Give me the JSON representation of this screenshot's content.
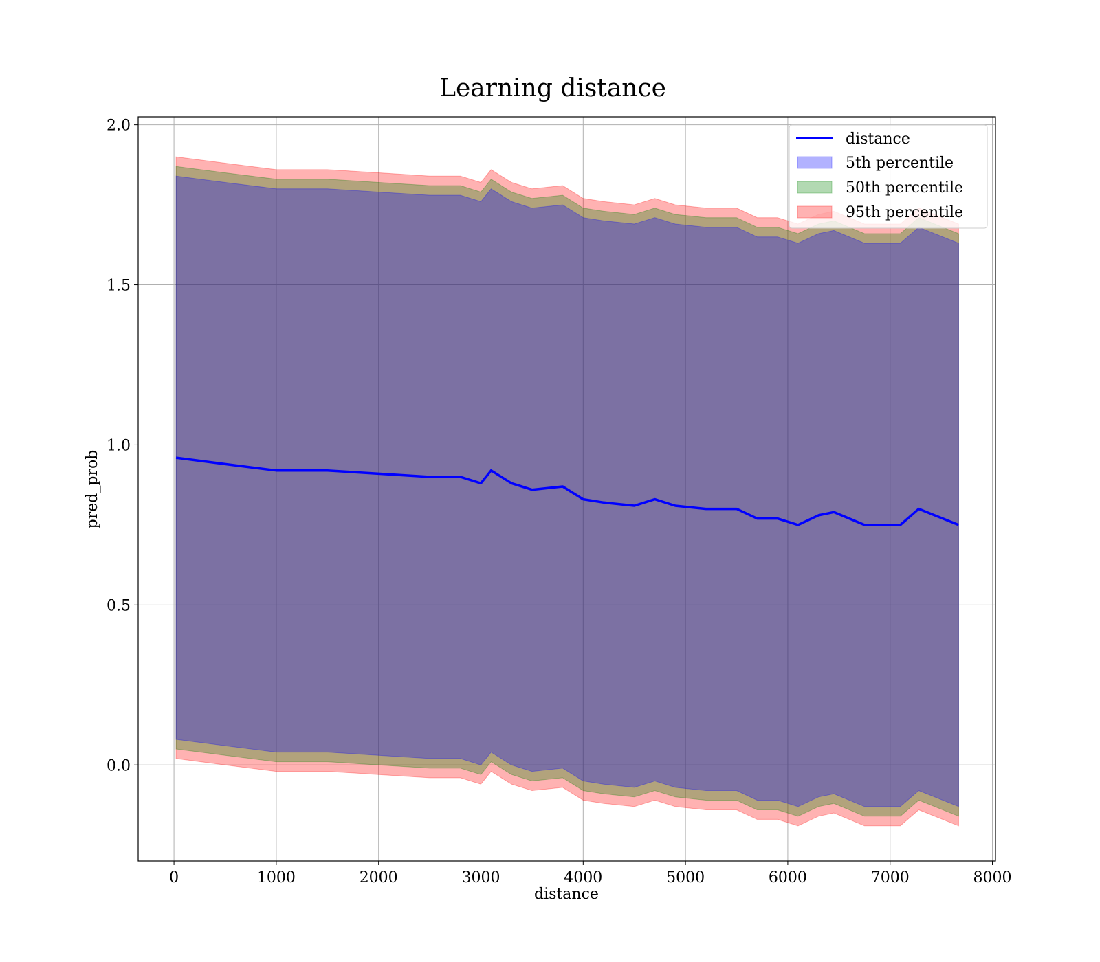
{
  "chart_data": {
    "type": "line",
    "title": "Learning distance",
    "xlabel": "distance",
    "ylabel": "pred_prob",
    "xlim": [
      -350,
      8030
    ],
    "ylim": [
      -0.3,
      2.025
    ],
    "xticks": [
      0,
      1000,
      2000,
      3000,
      4000,
      5000,
      6000,
      7000,
      8000
    ],
    "xtick_labels": [
      "0",
      "1000",
      "2000",
      "3000",
      "4000",
      "5000",
      "6000",
      "7000",
      "8000"
    ],
    "yticks": [
      0.0,
      0.5,
      1.0,
      1.5,
      2.0
    ],
    "ytick_labels": [
      "0.0",
      "0.5",
      "1.0",
      "1.5",
      "2.0"
    ],
    "grid": true,
    "legend_position": "top-right",
    "x": [
      20,
      500,
      1000,
      1500,
      2000,
      2500,
      2800,
      3000,
      3100,
      3300,
      3500,
      3800,
      4000,
      4200,
      4500,
      4700,
      4900,
      5200,
      5500,
      5700,
      5900,
      6100,
      6300,
      6450,
      6750,
      7100,
      7280,
      7670
    ],
    "series": [
      {
        "name": "distance",
        "kind": "line",
        "color": "#0000ff",
        "values": [
          0.96,
          0.94,
          0.92,
          0.92,
          0.91,
          0.9,
          0.9,
          0.88,
          0.92,
          0.88,
          0.86,
          0.87,
          0.83,
          0.82,
          0.81,
          0.83,
          0.81,
          0.8,
          0.8,
          0.77,
          0.77,
          0.75,
          0.78,
          0.79,
          0.75,
          0.75,
          0.8,
          0.75
        ]
      },
      {
        "name": "5th percentile",
        "kind": "band",
        "color": "#0000ff",
        "upper": [
          1.84,
          1.82,
          1.8,
          1.8,
          1.79,
          1.78,
          1.78,
          1.76,
          1.8,
          1.76,
          1.74,
          1.75,
          1.71,
          1.7,
          1.69,
          1.71,
          1.69,
          1.68,
          1.68,
          1.65,
          1.65,
          1.63,
          1.66,
          1.67,
          1.63,
          1.63,
          1.68,
          1.63
        ],
        "lower": [
          0.08,
          0.06,
          0.04,
          0.04,
          0.03,
          0.02,
          0.02,
          0.0,
          0.04,
          0.0,
          -0.02,
          -0.01,
          -0.05,
          -0.06,
          -0.07,
          -0.05,
          -0.07,
          -0.08,
          -0.08,
          -0.11,
          -0.11,
          -0.13,
          -0.1,
          -0.09,
          -0.13,
          -0.13,
          -0.08,
          -0.13
        ]
      },
      {
        "name": "50th percentile",
        "kind": "band",
        "color": "#008000",
        "upper": [
          1.87,
          1.85,
          1.83,
          1.83,
          1.82,
          1.81,
          1.81,
          1.79,
          1.83,
          1.79,
          1.77,
          1.78,
          1.74,
          1.73,
          1.72,
          1.74,
          1.72,
          1.71,
          1.71,
          1.68,
          1.68,
          1.66,
          1.69,
          1.7,
          1.66,
          1.66,
          1.71,
          1.66
        ],
        "lower": [
          0.05,
          0.03,
          0.01,
          0.01,
          0.0,
          -0.01,
          -0.01,
          -0.03,
          0.01,
          -0.03,
          -0.05,
          -0.04,
          -0.08,
          -0.09,
          -0.1,
          -0.08,
          -0.1,
          -0.11,
          -0.11,
          -0.14,
          -0.14,
          -0.16,
          -0.13,
          -0.12,
          -0.16,
          -0.16,
          -0.11,
          -0.16
        ]
      },
      {
        "name": "95th percentile",
        "kind": "band",
        "color": "#ff0000",
        "upper": [
          1.9,
          1.88,
          1.86,
          1.86,
          1.85,
          1.84,
          1.84,
          1.82,
          1.86,
          1.82,
          1.8,
          1.81,
          1.77,
          1.76,
          1.75,
          1.77,
          1.75,
          1.74,
          1.74,
          1.71,
          1.71,
          1.69,
          1.72,
          1.73,
          1.69,
          1.69,
          1.74,
          1.69
        ],
        "lower": [
          0.02,
          0.0,
          -0.02,
          -0.02,
          -0.03,
          -0.04,
          -0.04,
          -0.06,
          -0.02,
          -0.06,
          -0.08,
          -0.07,
          -0.11,
          -0.12,
          -0.13,
          -0.11,
          -0.13,
          -0.14,
          -0.14,
          -0.17,
          -0.17,
          -0.19,
          -0.16,
          -0.15,
          -0.19,
          -0.19,
          -0.14,
          -0.19
        ]
      }
    ]
  }
}
